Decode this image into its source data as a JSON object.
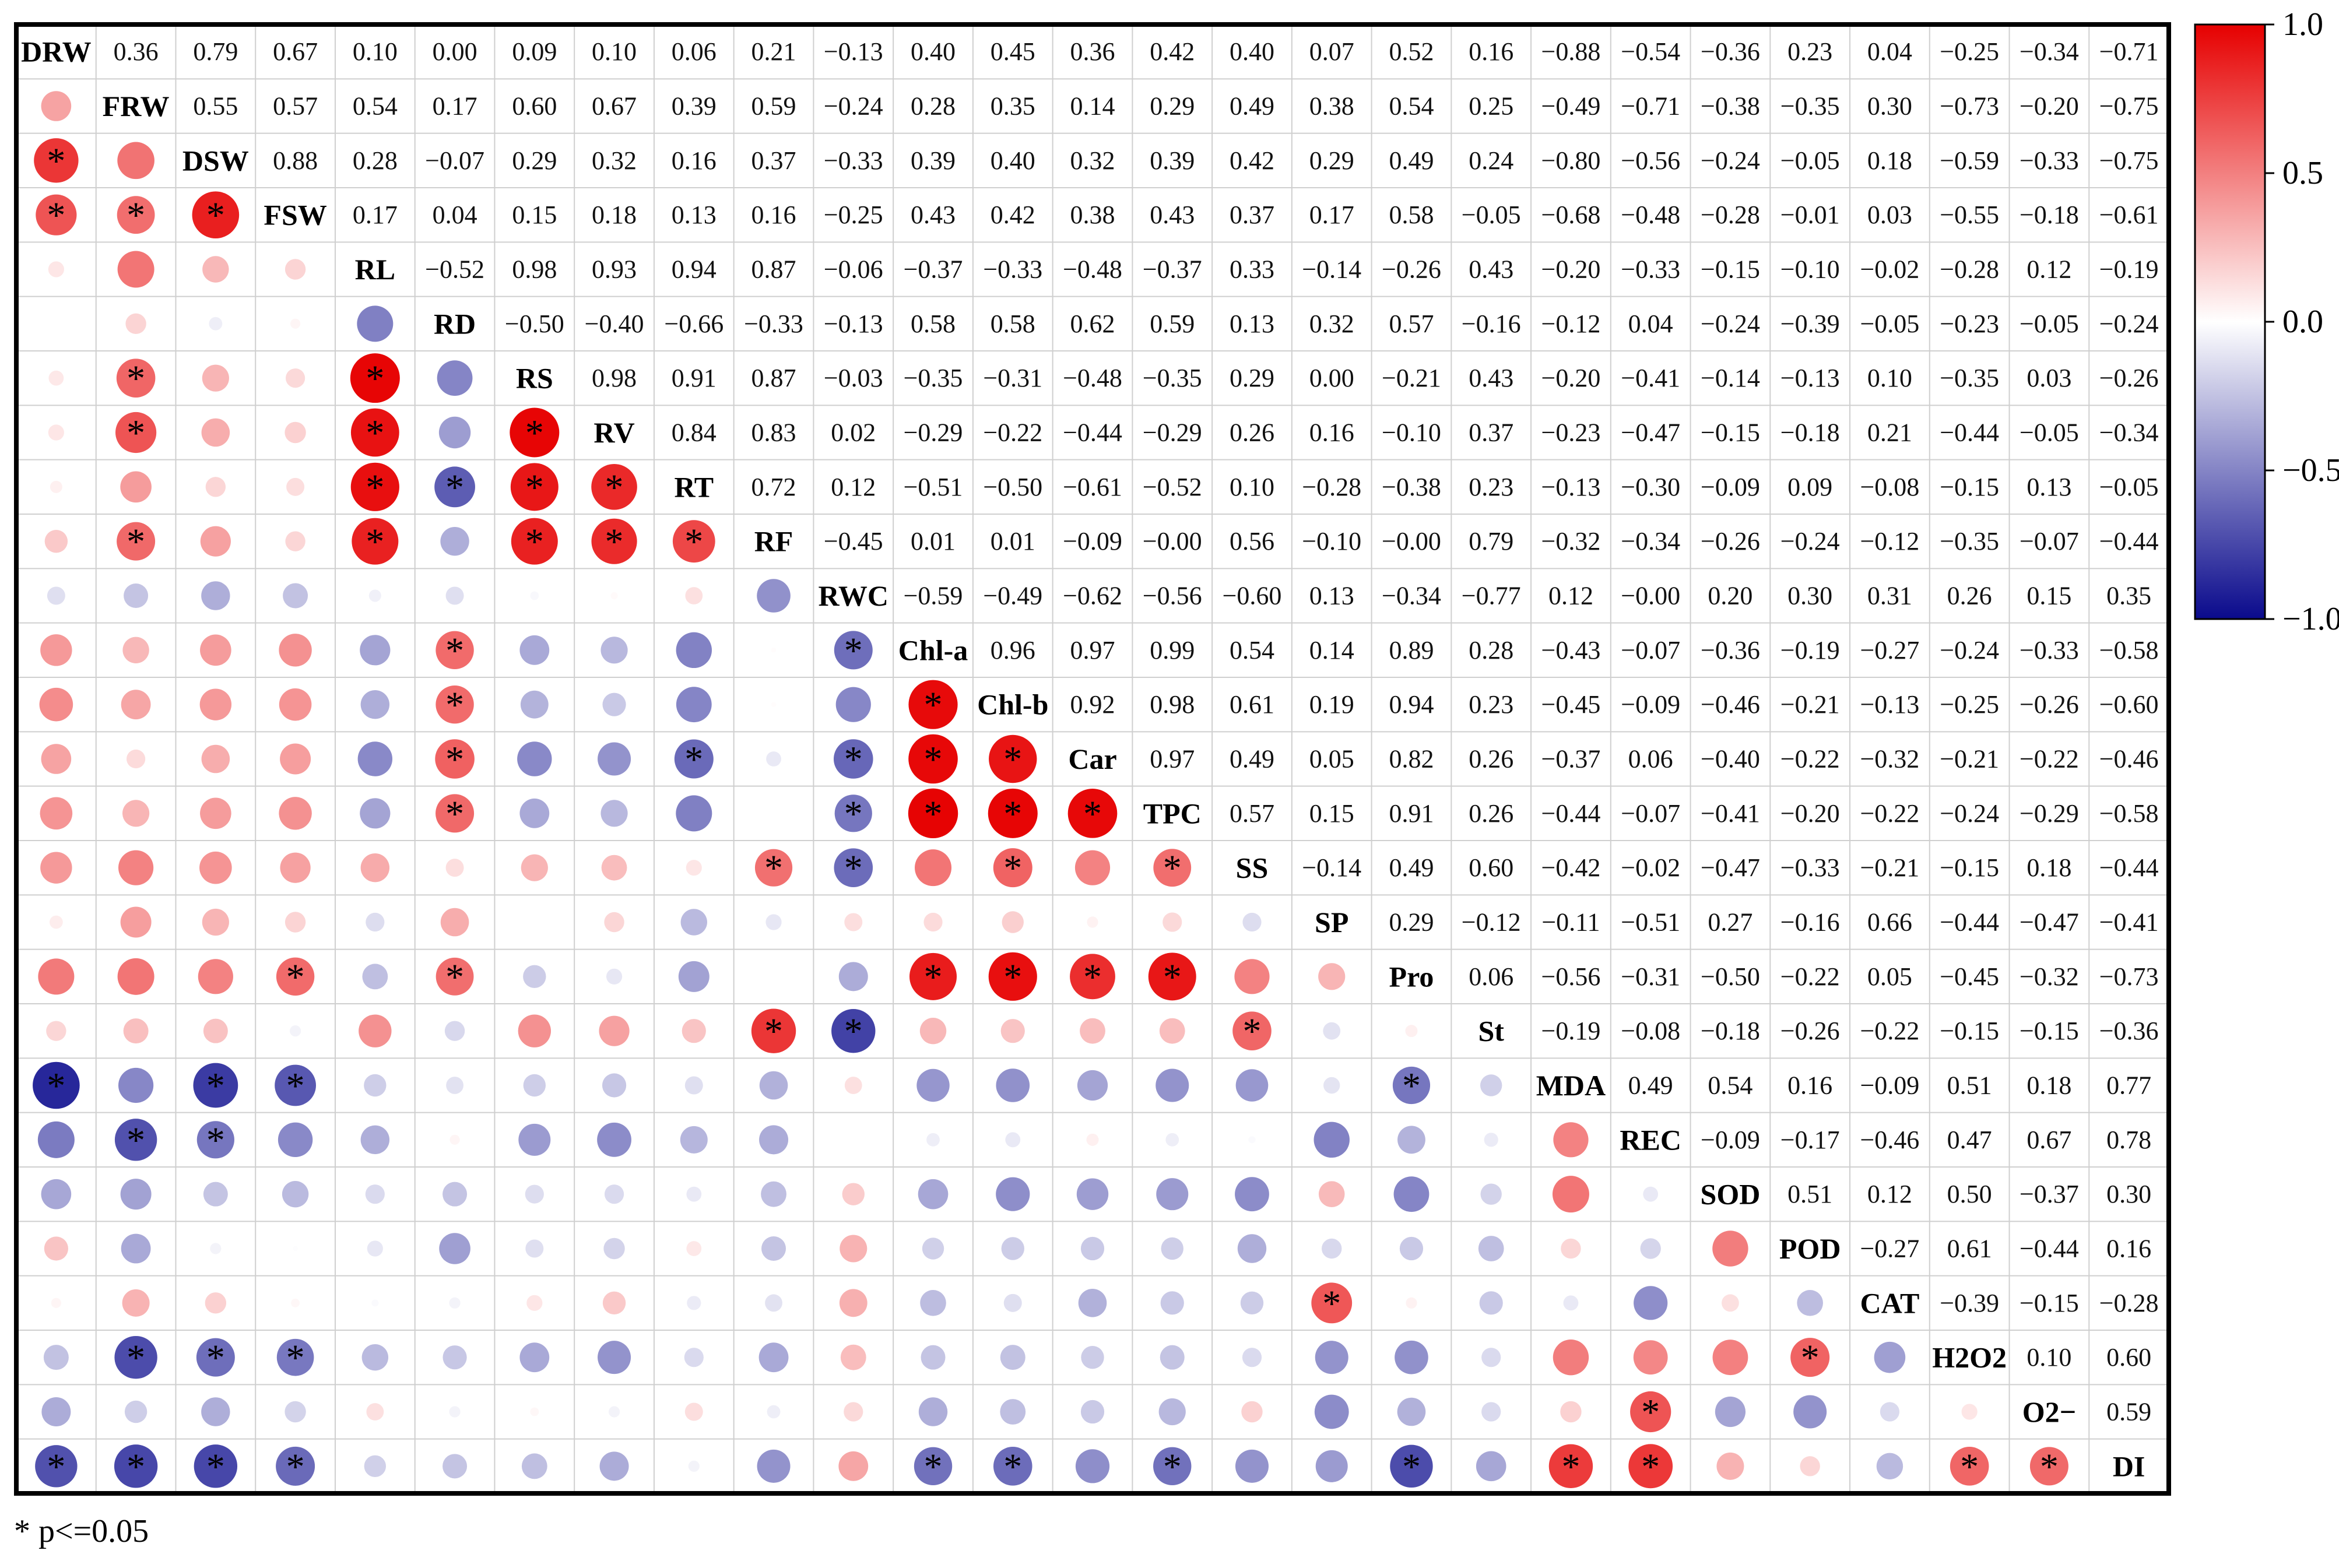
{
  "chart_data": {
    "type": "heatmap",
    "variables": [
      "DRW",
      "FRW",
      "DSW",
      "FSW",
      "RL",
      "RD",
      "RS",
      "RV",
      "RT",
      "RF",
      "RWC",
      "Chl-a",
      "Chl-b",
      "Car",
      "TPC",
      "SS",
      "SP",
      "Pro",
      "St",
      "MDA",
      "REC",
      "SOD",
      "POD",
      "CAT",
      "H2O2",
      "O2−",
      "DI"
    ],
    "correlation_upper_text": [
      [
        "DRW",
        "0.36",
        "0.79",
        "0.67",
        "0.10",
        "0.00",
        "0.09",
        "0.10",
        "0.06",
        "0.21",
        "−0.13",
        "0.40",
        "0.45",
        "0.36",
        "0.42",
        "0.40",
        "0.07",
        "0.52",
        "0.16",
        "−0.88",
        "−0.54",
        "−0.36",
        "0.23",
        "0.04",
        "−0.25",
        "−0.34",
        "−0.71"
      ],
      [
        "",
        "FRW",
        "0.55",
        "0.57",
        "0.54",
        "0.17",
        "0.60",
        "0.67",
        "0.39",
        "0.59",
        "−0.24",
        "0.28",
        "0.35",
        "0.14",
        "0.29",
        "0.49",
        "0.38",
        "0.54",
        "0.25",
        "−0.49",
        "−0.71",
        "−0.38",
        "−0.35",
        "0.30",
        "−0.73",
        "−0.20",
        "−0.75"
      ],
      [
        "",
        "",
        "DSW",
        "0.88",
        "0.28",
        "−0.07",
        "0.29",
        "0.32",
        "0.16",
        "0.37",
        "−0.33",
        "0.39",
        "0.40",
        "0.32",
        "0.39",
        "0.42",
        "0.29",
        "0.49",
        "0.24",
        "−0.80",
        "−0.56",
        "−0.24",
        "−0.05",
        "0.18",
        "−0.59",
        "−0.33",
        "−0.75"
      ],
      [
        "",
        "",
        "",
        "FSW",
        "0.17",
        "0.04",
        "0.15",
        "0.18",
        "0.13",
        "0.16",
        "−0.25",
        "0.43",
        "0.42",
        "0.38",
        "0.43",
        "0.37",
        "0.17",
        "0.58",
        "−0.05",
        "−0.68",
        "−0.48",
        "−0.28",
        "−0.01",
        "0.03",
        "−0.55",
        "−0.18",
        "−0.61"
      ],
      [
        "",
        "",
        "",
        "",
        "RL",
        "−0.52",
        "0.98",
        "0.93",
        "0.94",
        "0.87",
        "−0.06",
        "−0.37",
        "−0.33",
        "−0.48",
        "−0.37",
        "0.33",
        "−0.14",
        "−0.26",
        "0.43",
        "−0.20",
        "−0.33",
        "−0.15",
        "−0.10",
        "−0.02",
        "−0.28",
        "0.12",
        "−0.19"
      ],
      [
        "",
        "",
        "",
        "",
        "",
        "RD",
        "−0.50",
        "−0.40",
        "−0.66",
        "−0.33",
        "−0.13",
        "0.58",
        "0.58",
        "0.62",
        "0.59",
        "0.13",
        "0.32",
        "0.57",
        "−0.16",
        "−0.12",
        "0.04",
        "−0.24",
        "−0.39",
        "−0.05",
        "−0.23",
        "−0.05",
        "−0.24"
      ],
      [
        "",
        "",
        "",
        "",
        "",
        "",
        "RS",
        "0.98",
        "0.91",
        "0.87",
        "−0.03",
        "−0.35",
        "−0.31",
        "−0.48",
        "−0.35",
        "0.29",
        "0.00",
        "−0.21",
        "0.43",
        "−0.20",
        "−0.41",
        "−0.14",
        "−0.13",
        "0.10",
        "−0.35",
        "0.03",
        "−0.26"
      ],
      [
        "",
        "",
        "",
        "",
        "",
        "",
        "",
        "RV",
        "0.84",
        "0.83",
        "0.02",
        "−0.29",
        "−0.22",
        "−0.44",
        "−0.29",
        "0.26",
        "0.16",
        "−0.10",
        "0.37",
        "−0.23",
        "−0.47",
        "−0.15",
        "−0.18",
        "0.21",
        "−0.44",
        "−0.05",
        "−0.34"
      ],
      [
        "",
        "",
        "",
        "",
        "",
        "",
        "",
        "",
        "RT",
        "0.72",
        "0.12",
        "−0.51",
        "−0.50",
        "−0.61",
        "−0.52",
        "0.10",
        "−0.28",
        "−0.38",
        "0.23",
        "−0.13",
        "−0.30",
        "−0.09",
        "0.09",
        "−0.08",
        "−0.15",
        "0.13",
        "−0.05"
      ],
      [
        "",
        "",
        "",
        "",
        "",
        "",
        "",
        "",
        "",
        "RF",
        "−0.45",
        "0.01",
        "0.01",
        "−0.09",
        "−0.00",
        "0.56",
        "−0.10",
        "−0.00",
        "0.79",
        "−0.32",
        "−0.34",
        "−0.26",
        "−0.24",
        "−0.12",
        "−0.35",
        "−0.07",
        "−0.44"
      ],
      [
        "",
        "",
        "",
        "",
        "",
        "",
        "",
        "",
        "",
        "",
        "RWC",
        "−0.59",
        "−0.49",
        "−0.62",
        "−0.56",
        "−0.60",
        "0.13",
        "−0.34",
        "−0.77",
        "0.12",
        "−0.00",
        "0.20",
        "0.30",
        "0.31",
        "0.26",
        "0.15",
        "0.35"
      ],
      [
        "",
        "",
        "",
        "",
        "",
        "",
        "",
        "",
        "",
        "",
        "",
        "Chl-a",
        "0.96",
        "0.97",
        "0.99",
        "0.54",
        "0.14",
        "0.89",
        "0.28",
        "−0.43",
        "−0.07",
        "−0.36",
        "−0.19",
        "−0.27",
        "−0.24",
        "−0.33",
        "−0.58"
      ],
      [
        "",
        "",
        "",
        "",
        "",
        "",
        "",
        "",
        "",
        "",
        "",
        "",
        "Chl-b",
        "0.92",
        "0.98",
        "0.61",
        "0.19",
        "0.94",
        "0.23",
        "−0.45",
        "−0.09",
        "−0.46",
        "−0.21",
        "−0.13",
        "−0.25",
        "−0.26",
        "−0.60"
      ],
      [
        "",
        "",
        "",
        "",
        "",
        "",
        "",
        "",
        "",
        "",
        "",
        "",
        "",
        "Car",
        "0.97",
        "0.49",
        "0.05",
        "0.82",
        "0.26",
        "−0.37",
        "0.06",
        "−0.40",
        "−0.22",
        "−0.32",
        "−0.21",
        "−0.22",
        "−0.46"
      ],
      [
        "",
        "",
        "",
        "",
        "",
        "",
        "",
        "",
        "",
        "",
        "",
        "",
        "",
        "",
        "TPC",
        "0.57",
        "0.15",
        "0.91",
        "0.26",
        "−0.44",
        "−0.07",
        "−0.41",
        "−0.20",
        "−0.22",
        "−0.24",
        "−0.29",
        "−0.58"
      ],
      [
        "",
        "",
        "",
        "",
        "",
        "",
        "",
        "",
        "",
        "",
        "",
        "",
        "",
        "",
        "",
        "SS",
        "−0.14",
        "0.49",
        "0.60",
        "−0.42",
        "−0.02",
        "−0.47",
        "−0.33",
        "−0.21",
        "−0.15",
        "0.18",
        "−0.44"
      ],
      [
        "",
        "",
        "",
        "",
        "",
        "",
        "",
        "",
        "",
        "",
        "",
        "",
        "",
        "",
        "",
        "",
        "SP",
        "0.29",
        "−0.12",
        "−0.11",
        "−0.51",
        "0.27",
        "−0.16",
        "0.66",
        "−0.44",
        "−0.47",
        "−0.41"
      ],
      [
        "",
        "",
        "",
        "",
        "",
        "",
        "",
        "",
        "",
        "",
        "",
        "",
        "",
        "",
        "",
        "",
        "",
        "Pro",
        "0.06",
        "−0.56",
        "−0.31",
        "−0.50",
        "−0.22",
        "0.05",
        "−0.45",
        "−0.32",
        "−0.73"
      ],
      [
        "",
        "",
        "",
        "",
        "",
        "",
        "",
        "",
        "",
        "",
        "",
        "",
        "",
        "",
        "",
        "",
        "",
        "",
        "St",
        "−0.19",
        "−0.08",
        "−0.18",
        "−0.26",
        "−0.22",
        "−0.15",
        "−0.15",
        "−0.36"
      ],
      [
        "",
        "",
        "",
        "",
        "",
        "",
        "",
        "",
        "",
        "",
        "",
        "",
        "",
        "",
        "",
        "",
        "",
        "",
        "",
        "MDA",
        "0.49",
        "0.54",
        "0.16",
        "−0.09",
        "0.51",
        "0.18",
        "0.77"
      ],
      [
        "",
        "",
        "",
        "",
        "",
        "",
        "",
        "",
        "",
        "",
        "",
        "",
        "",
        "",
        "",
        "",
        "",
        "",
        "",
        "",
        "REC",
        "−0.09",
        "−0.17",
        "−0.46",
        "0.47",
        "0.67",
        "0.78"
      ],
      [
        "",
        "",
        "",
        "",
        "",
        "",
        "",
        "",
        "",
        "",
        "",
        "",
        "",
        "",
        "",
        "",
        "",
        "",
        "",
        "",
        "",
        "SOD",
        "0.51",
        "0.12",
        "0.50",
        "−0.37",
        "0.30"
      ],
      [
        "",
        "",
        "",
        "",
        "",
        "",
        "",
        "",
        "",
        "",
        "",
        "",
        "",
        "",
        "",
        "",
        "",
        "",
        "",
        "",
        "",
        "",
        "POD",
        "−0.27",
        "0.61",
        "−0.44",
        "0.16"
      ],
      [
        "",
        "",
        "",
        "",
        "",
        "",
        "",
        "",
        "",
        "",
        "",
        "",
        "",
        "",
        "",
        "",
        "",
        "",
        "",
        "",
        "",
        "",
        "",
        "CAT",
        "−0.39",
        "−0.15",
        "−0.28"
      ],
      [
        "",
        "",
        "",
        "",
        "",
        "",
        "",
        "",
        "",
        "",
        "",
        "",
        "",
        "",
        "",
        "",
        "",
        "",
        "",
        "",
        "",
        "",
        "",
        "",
        "H2O2",
        "0.10",
        "0.60"
      ],
      [
        "",
        "",
        "",
        "",
        "",
        "",
        "",
        "",
        "",
        "",
        "",
        "",
        "",
        "",
        "",
        "",
        "",
        "",
        "",
        "",
        "",
        "",
        "",
        "",
        "",
        "O2−",
        "0.59"
      ],
      [
        "",
        "",
        "",
        "",
        "",
        "",
        "",
        "",
        "",
        "",
        "",
        "",
        "",
        "",
        "",
        "",
        "",
        "",
        "",
        "",
        "",
        "",
        "",
        "",
        "",
        "",
        "DI"
      ]
    ],
    "significance_marker": "*",
    "significance_note": "* p<=0.05",
    "colorbar": {
      "range": [
        -1.0,
        1.0
      ],
      "ticks": [
        "1.0",
        "0.5",
        "0.0",
        "−0.5",
        "−1.0"
      ],
      "colors": {
        "negative": "#0a0a8c",
        "zero": "#ffffff",
        "positive": "#e60000"
      }
    },
    "lower_triangle_glyph": "circle sized and colored by correlation"
  }
}
